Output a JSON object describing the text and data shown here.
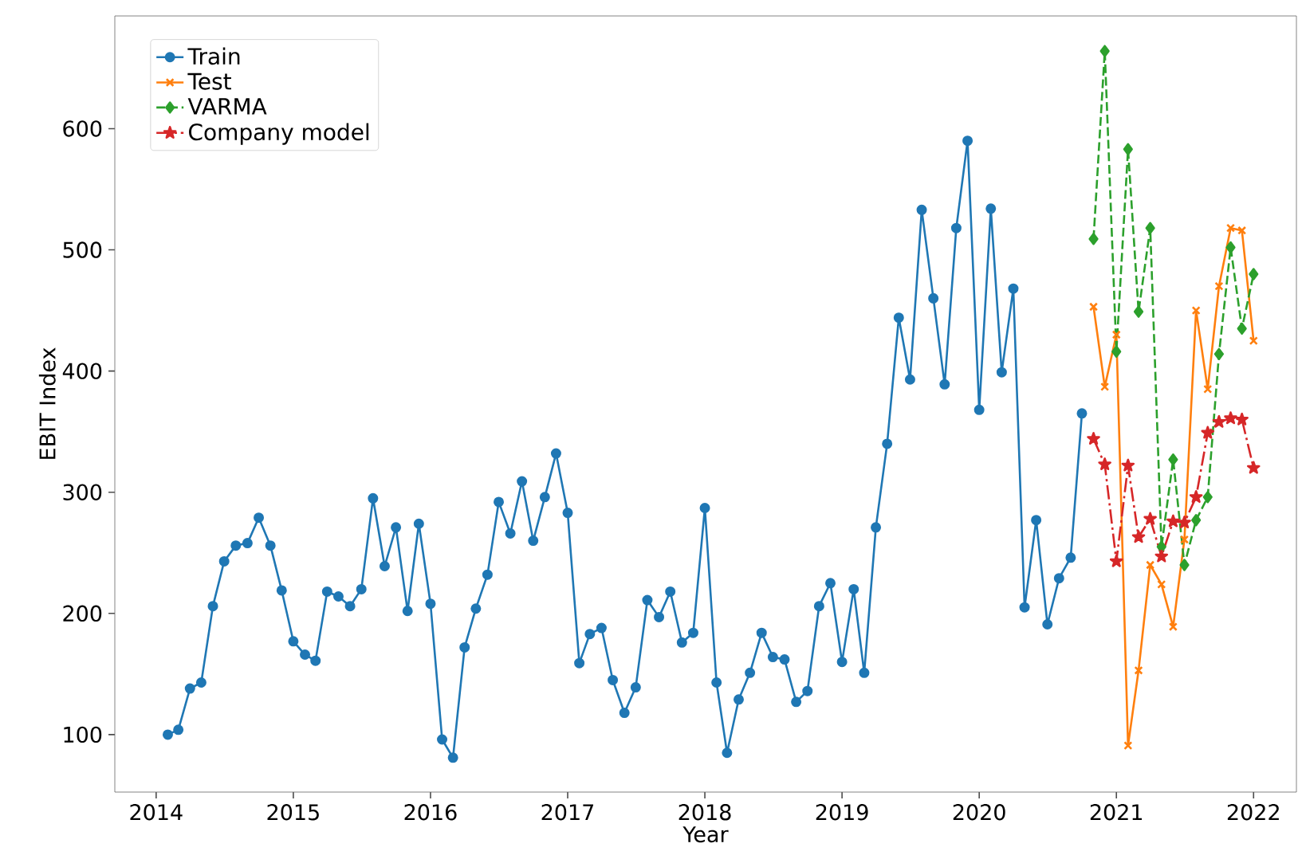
{
  "chart_data": {
    "type": "line",
    "xlabel": "Year",
    "ylabel": "EBIT Index",
    "x": [
      "2020-11",
      "2020-12",
      "2021-01",
      "2021-02",
      "2021-03",
      "2021-04",
      "2021-05",
      "2021-06",
      "2021-07",
      "2021-08",
      "2021-09",
      "2021-10",
      "2021-11",
      "2021-12",
      "2022-01"
    ],
    "series": [
      {
        "name": "Train",
        "color": "#1f77b4",
        "marker": "circle",
        "line_style": "solid",
        "x": [
          "2014-02",
          "2014-03",
          "2014-04",
          "2014-05",
          "2014-06",
          "2014-07",
          "2014-08",
          "2014-09",
          "2014-10",
          "2014-11",
          "2014-12",
          "2015-01",
          "2015-02",
          "2015-03",
          "2015-04",
          "2015-05",
          "2015-06",
          "2015-07",
          "2015-08",
          "2015-09",
          "2015-10",
          "2015-11",
          "2015-12",
          "2016-01",
          "2016-02",
          "2016-03",
          "2016-04",
          "2016-05",
          "2016-06",
          "2016-07",
          "2016-08",
          "2016-09",
          "2016-10",
          "2016-11",
          "2016-12",
          "2017-01",
          "2017-02",
          "2017-03",
          "2017-04",
          "2017-05",
          "2017-06",
          "2017-07",
          "2017-08",
          "2017-09",
          "2017-10",
          "2017-11",
          "2017-12",
          "2018-01",
          "2018-02",
          "2018-03",
          "2018-04",
          "2018-05",
          "2018-06",
          "2018-07",
          "2018-08",
          "2018-09",
          "2018-10",
          "2018-11",
          "2018-12",
          "2019-01",
          "2019-02",
          "2019-03",
          "2019-04",
          "2019-05",
          "2019-06",
          "2019-07",
          "2019-08",
          "2019-09",
          "2019-10",
          "2019-11",
          "2019-12",
          "2020-01",
          "2020-02",
          "2020-03",
          "2020-04",
          "2020-05",
          "2020-06",
          "2020-07",
          "2020-08",
          "2020-09",
          "2020-10"
        ],
        "values": [
          100,
          104,
          138,
          143,
          206,
          243,
          256,
          258,
          279,
          256,
          219,
          177,
          166,
          161,
          218,
          214,
          206,
          220,
          295,
          239,
          271,
          202,
          274,
          208,
          96,
          81,
          172,
          204,
          232,
          292,
          266,
          309,
          260,
          296,
          332,
          283,
          159,
          183,
          188,
          145,
          118,
          139,
          211,
          197,
          218,
          176,
          184,
          287,
          143,
          85,
          129,
          151,
          184,
          164,
          162,
          127,
          136,
          206,
          225,
          160,
          220,
          151,
          271,
          340,
          444,
          393,
          533,
          460,
          389,
          518,
          590,
          368,
          534,
          399,
          468,
          205,
          277,
          191,
          229,
          246,
          365
        ]
      },
      {
        "name": "Test",
        "color": "#ff7f0e",
        "marker": "cross",
        "line_style": "solid",
        "values": [
          453,
          387,
          430,
          91,
          153,
          240,
          224,
          189,
          261,
          450,
          385,
          470,
          518,
          516,
          425
        ]
      },
      {
        "name": "VARMA",
        "color": "#2ca02c",
        "marker": "diamond",
        "line_style": "dashed",
        "values": [
          509,
          664,
          416,
          583,
          449,
          518,
          255,
          327,
          240,
          277,
          296,
          414,
          502,
          435,
          480
        ]
      },
      {
        "name": "Company model",
        "color": "#d62728",
        "marker": "star",
        "line_style": "dashdot",
        "values": [
          344,
          323,
          243,
          322,
          263,
          278,
          247,
          276,
          275,
          296,
          349,
          358,
          361,
          360,
          320
        ]
      }
    ],
    "xlim": [
      "2013-09-13",
      "2022-04-25"
    ],
    "ylim": [
      52.6,
      693
    ],
    "xticks": [
      "2014",
      "2015",
      "2016",
      "2017",
      "2018",
      "2019",
      "2020",
      "2021",
      "2022"
    ],
    "yticks": [
      100,
      200,
      300,
      400,
      500,
      600
    ],
    "grid": false,
    "legend": "top left"
  }
}
